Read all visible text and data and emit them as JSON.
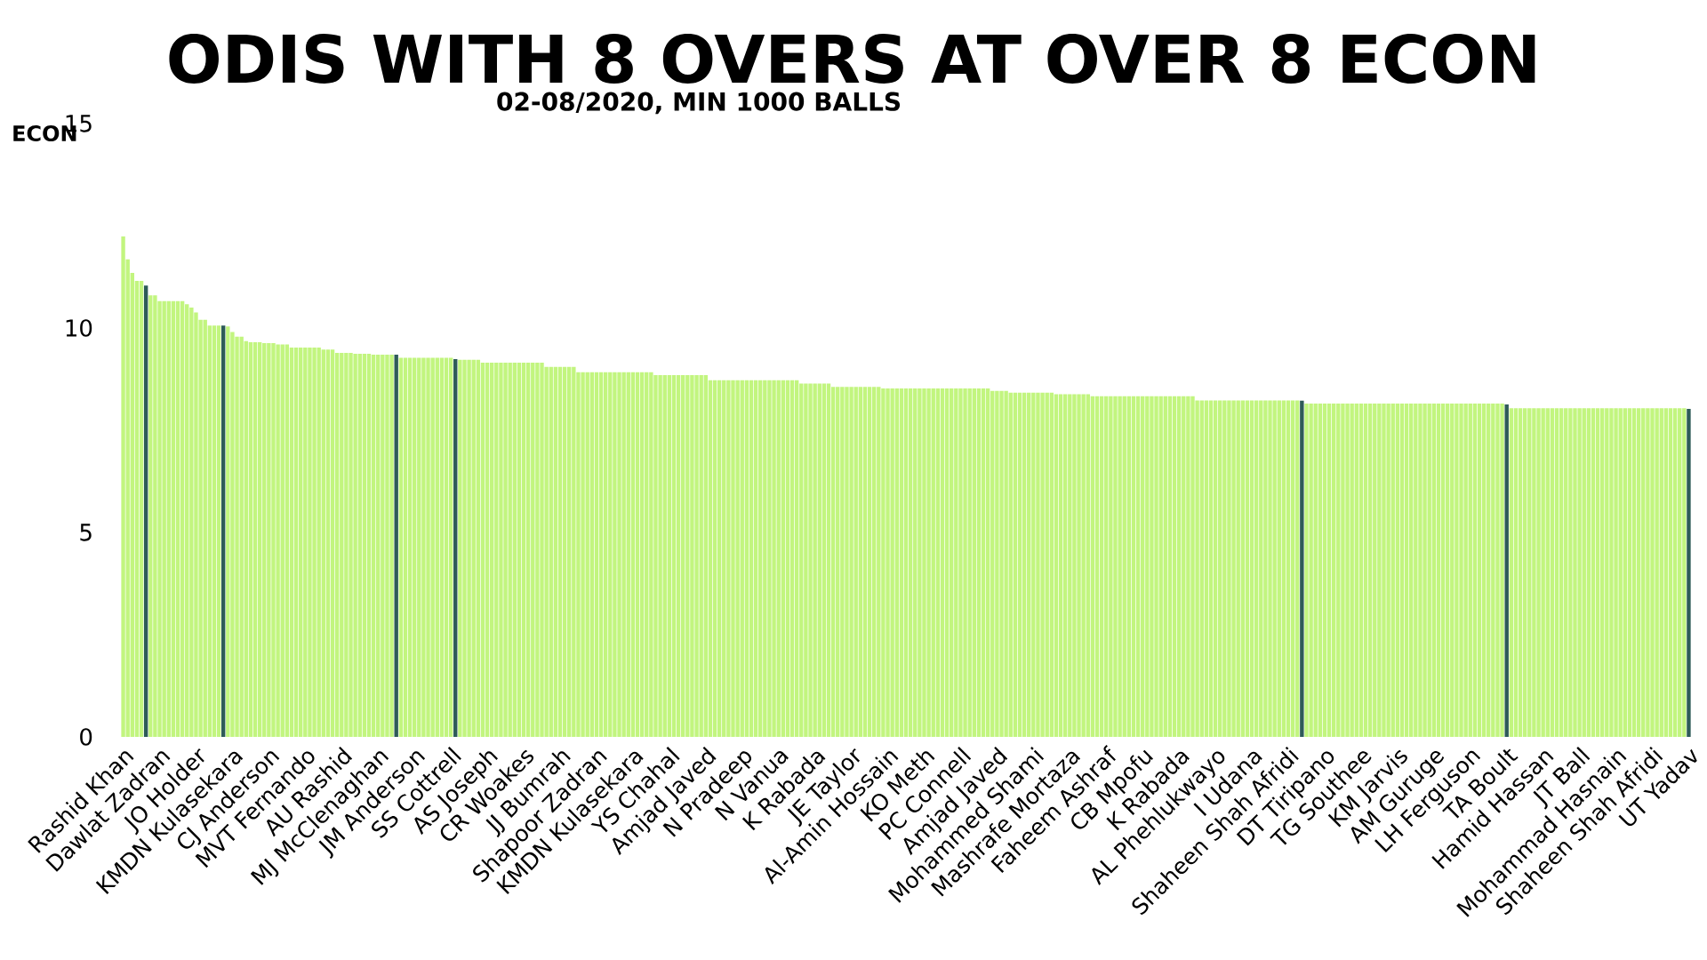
{
  "chart_data": {
    "type": "bar",
    "title": "ODIS WITH 8 OVERS AT OVER 8 ECON",
    "subtitle": "02-08/2020, MIN 1000 BALLS",
    "ylabel": "ECON",
    "ylim": [
      0,
      15
    ],
    "yticks": [
      0,
      5,
      10,
      15
    ],
    "categories": [
      "Rashid Khan",
      null,
      null,
      null,
      null,
      null,
      null,
      null,
      "Dawlat Zadran",
      null,
      null,
      null,
      null,
      null,
      null,
      null,
      "JO Holder",
      null,
      null,
      null,
      null,
      null,
      null,
      null,
      "KMDN Kulasekara",
      null,
      null,
      null,
      null,
      null,
      null,
      null,
      "CJ Anderson",
      null,
      null,
      null,
      null,
      null,
      null,
      null,
      "MVT Fernando",
      null,
      null,
      null,
      null,
      null,
      null,
      null,
      "AU Rashid",
      null,
      null,
      null,
      null,
      null,
      null,
      null,
      "MJ McClenaghan",
      null,
      null,
      null,
      null,
      null,
      null,
      null,
      "JM Anderson",
      null,
      null,
      null,
      null,
      null,
      null,
      null,
      "SS Cottrell",
      null,
      null,
      null,
      null,
      null,
      null,
      null,
      "AS Joseph",
      null,
      null,
      null,
      null,
      null,
      null,
      null,
      "CR Woakes",
      null,
      null,
      null,
      null,
      null,
      null,
      null,
      "JJ Bumrah",
      null,
      null,
      null,
      null,
      null,
      null,
      null,
      "Shapoor Zadran",
      null,
      null,
      null,
      null,
      null,
      null,
      null,
      "KMDN Kulasekara",
      null,
      null,
      null,
      null,
      null,
      null,
      null,
      "YS Chahal",
      null,
      null,
      null,
      null,
      null,
      null,
      null,
      "Amjad Javed",
      null,
      null,
      null,
      null,
      null,
      null,
      null,
      "N Pradeep",
      null,
      null,
      null,
      null,
      null,
      null,
      null,
      "N Vanua",
      null,
      null,
      null,
      null,
      null,
      null,
      null,
      "K Rabada",
      null,
      null,
      null,
      null,
      null,
      null,
      null,
      "JE Taylor",
      null,
      null,
      null,
      null,
      null,
      null,
      null,
      "Al-Amin Hossain",
      null,
      null,
      null,
      null,
      null,
      null,
      null,
      "KO Meth",
      null,
      null,
      null,
      null,
      null,
      null,
      null,
      "PC Connell",
      null,
      null,
      null,
      null,
      null,
      null,
      null,
      "Amjad Javed",
      null,
      null,
      null,
      null,
      null,
      null,
      null,
      "Mohammed Shami",
      null,
      null,
      null,
      null,
      null,
      null,
      null,
      "Mashrafe Mortaza",
      null,
      null,
      null,
      null,
      null,
      null,
      null,
      "Faheem Ashraf",
      null,
      null,
      null,
      null,
      null,
      null,
      null,
      "CB Mpofu",
      null,
      null,
      null,
      null,
      null,
      null,
      null,
      "K Rabada",
      null,
      null,
      null,
      null,
      null,
      null,
      null,
      "AL Phehlukwayo",
      null,
      null,
      null,
      null,
      null,
      null,
      null,
      "I Udana",
      null,
      null,
      null,
      null,
      null,
      null,
      null,
      "Shaheen Shah Afridi",
      null,
      null,
      null,
      null,
      null,
      null,
      null,
      "DT Tiripano",
      null,
      null,
      null,
      null,
      null,
      null,
      null,
      "TG Southee",
      null,
      null,
      null,
      null,
      null,
      null,
      null,
      "KM Jarvis",
      null,
      null,
      null,
      null,
      null,
      null,
      null,
      "AM Guruge",
      null,
      null,
      null,
      null,
      null,
      null,
      null,
      "LH Ferguson",
      null,
      null,
      null,
      null,
      null,
      null,
      null,
      "TA Boult",
      null,
      null,
      null,
      null,
      null,
      null,
      null,
      "Hamid Hassan",
      null,
      null,
      null,
      null,
      null,
      null,
      null,
      "JT Ball",
      null,
      null,
      null,
      null,
      null,
      null,
      null,
      "Mohammad Hasnain",
      null,
      null,
      null,
      null,
      null,
      null,
      null,
      "Shaheen Shah Afridi",
      null,
      null,
      null,
      null,
      null,
      null,
      null,
      "UT Yadav"
    ],
    "values": [
      12.24,
      11.68,
      11.35,
      11.15,
      11.15,
      11.04,
      10.8,
      10.8,
      10.66,
      10.66,
      10.66,
      10.66,
      10.66,
      10.66,
      10.58,
      10.5,
      10.38,
      10.2,
      10.2,
      10.06,
      10.06,
      10.06,
      10.06,
      10.04,
      9.9,
      9.79,
      9.79,
      9.68,
      9.65,
      9.65,
      9.65,
      9.63,
      9.63,
      9.63,
      9.6,
      9.6,
      9.6,
      9.52,
      9.52,
      9.52,
      9.52,
      9.52,
      9.52,
      9.52,
      9.47,
      9.47,
      9.47,
      9.39,
      9.39,
      9.39,
      9.39,
      9.37,
      9.37,
      9.37,
      9.37,
      9.35,
      9.35,
      9.35,
      9.35,
      9.35,
      9.35,
      9.27,
      9.27,
      9.27,
      9.27,
      9.27,
      9.27,
      9.27,
      9.27,
      9.27,
      9.27,
      9.27,
      9.27,
      9.24,
      9.22,
      9.22,
      9.22,
      9.22,
      9.22,
      9.15,
      9.15,
      9.15,
      9.15,
      9.15,
      9.15,
      9.15,
      9.15,
      9.15,
      9.15,
      9.15,
      9.15,
      9.15,
      9.15,
      9.05,
      9.05,
      9.05,
      9.05,
      9.05,
      9.05,
      9.05,
      8.92,
      8.92,
      8.92,
      8.92,
      8.92,
      8.92,
      8.92,
      8.92,
      8.92,
      8.92,
      8.92,
      8.92,
      8.92,
      8.92,
      8.92,
      8.92,
      8.92,
      8.85,
      8.85,
      8.85,
      8.85,
      8.85,
      8.85,
      8.85,
      8.85,
      8.85,
      8.85,
      8.85,
      8.85,
      8.72,
      8.72,
      8.72,
      8.72,
      8.72,
      8.72,
      8.72,
      8.72,
      8.72,
      8.72,
      8.72,
      8.72,
      8.72,
      8.72,
      8.72,
      8.72,
      8.72,
      8.72,
      8.72,
      8.72,
      8.64,
      8.64,
      8.64,
      8.64,
      8.64,
      8.64,
      8.64,
      8.56,
      8.56,
      8.56,
      8.56,
      8.56,
      8.56,
      8.56,
      8.56,
      8.56,
      8.56,
      8.56,
      8.52,
      8.52,
      8.52,
      8.52,
      8.52,
      8.52,
      8.52,
      8.52,
      8.52,
      8.52,
      8.52,
      8.52,
      8.52,
      8.52,
      8.52,
      8.52,
      8.52,
      8.52,
      8.52,
      8.52,
      8.52,
      8.52,
      8.52,
      8.52,
      8.46,
      8.46,
      8.46,
      8.46,
      8.42,
      8.42,
      8.42,
      8.42,
      8.42,
      8.42,
      8.42,
      8.42,
      8.42,
      8.42,
      8.38,
      8.38,
      8.38,
      8.38,
      8.38,
      8.38,
      8.38,
      8.38,
      8.33,
      8.33,
      8.33,
      8.33,
      8.33,
      8.33,
      8.33,
      8.33,
      8.33,
      8.33,
      8.33,
      8.33,
      8.33,
      8.33,
      8.33,
      8.33,
      8.33,
      8.33,
      8.33,
      8.33,
      8.33,
      8.33,
      8.33,
      8.23,
      8.23,
      8.23,
      8.23,
      8.23,
      8.23,
      8.23,
      8.23,
      8.23,
      8.23,
      8.23,
      8.23,
      8.23,
      8.23,
      8.23,
      8.23,
      8.23,
      8.23,
      8.23,
      8.23,
      8.23,
      8.23,
      8.23,
      8.22,
      8.15,
      8.15,
      8.15,
      8.15,
      8.15,
      8.15,
      8.15,
      8.15,
      8.15,
      8.15,
      8.15,
      8.15,
      8.15,
      8.15,
      8.15,
      8.15,
      8.15,
      8.15,
      8.15,
      8.15,
      8.15,
      8.15,
      8.15,
      8.15,
      8.15,
      8.15,
      8.15,
      8.15,
      8.15,
      8.15,
      8.15,
      8.15,
      8.15,
      8.15,
      8.15,
      8.15,
      8.15,
      8.15,
      8.15,
      8.15,
      8.15,
      8.15,
      8.15,
      8.15,
      8.13,
      8.04,
      8.04,
      8.04,
      8.04,
      8.04,
      8.04,
      8.04,
      8.04,
      8.04,
      8.04,
      8.04,
      8.04,
      8.04,
      8.04,
      8.04,
      8.04,
      8.04,
      8.04,
      8.04,
      8.04,
      8.04,
      8.04,
      8.04,
      8.04,
      8.04,
      8.04,
      8.04,
      8.04,
      8.04,
      8.04,
      8.04,
      8.04,
      8.04,
      8.04,
      8.04,
      8.04,
      8.04,
      8.04,
      8.04,
      8.02
    ],
    "colors": [
      "#c2f57f",
      "#c2f57f",
      "#c2f57f",
      "#c2f57f",
      "#c2f57f",
      "#2e5b58",
      "#c2f57f",
      "#c2f57f",
      "#c2f57f",
      "#c2f57f",
      "#c2f57f",
      "#c2f57f",
      "#c2f57f",
      "#c2f57f",
      "#c2f57f",
      "#c2f57f",
      "#c2f57f",
      "#c2f57f",
      "#c2f57f",
      "#c2f57f",
      "#c2f57f",
      "#c2f57f",
      "#2e5b58",
      "#c2f57f",
      "#c2f57f",
      "#c2f57f",
      "#c2f57f",
      "#c2f57f",
      "#c2f57f",
      "#c2f57f",
      "#c2f57f",
      "#c2f57f",
      "#c2f57f",
      "#c2f57f",
      "#c2f57f",
      "#c2f57f",
      "#c2f57f",
      "#c2f57f",
      "#c2f57f",
      "#c2f57f",
      "#c2f57f",
      "#c2f57f",
      "#c2f57f",
      "#c2f57f",
      "#c2f57f",
      "#c2f57f",
      "#c2f57f",
      "#c2f57f",
      "#c2f57f",
      "#c2f57f",
      "#c2f57f",
      "#c2f57f",
      "#c2f57f",
      "#c2f57f",
      "#c2f57f",
      "#c2f57f",
      "#c2f57f",
      "#c2f57f",
      "#c2f57f",
      "#c2f57f",
      "#2e5b58",
      "#c2f57f",
      "#c2f57f",
      "#c2f57f",
      "#c2f57f",
      "#c2f57f",
      "#c2f57f",
      "#c2f57f",
      "#c2f57f",
      "#c2f57f",
      "#c2f57f",
      "#c2f57f",
      "#c2f57f",
      "#2e5b58",
      "#c2f57f",
      "#c2f57f",
      "#c2f57f",
      "#c2f57f",
      "#c2f57f",
      "#c2f57f",
      "#c2f57f",
      "#c2f57f",
      "#c2f57f",
      "#c2f57f",
      "#c2f57f",
      "#c2f57f",
      "#c2f57f",
      "#c2f57f",
      "#c2f57f",
      "#c2f57f",
      "#c2f57f",
      "#c2f57f",
      "#c2f57f",
      "#c2f57f",
      "#c2f57f",
      "#c2f57f",
      "#c2f57f",
      "#c2f57f",
      "#c2f57f",
      "#c2f57f",
      "#c2f57f",
      "#c2f57f",
      "#c2f57f",
      "#c2f57f",
      "#c2f57f",
      "#c2f57f",
      "#c2f57f",
      "#c2f57f",
      "#c2f57f",
      "#c2f57f",
      "#c2f57f",
      "#c2f57f",
      "#c2f57f",
      "#c2f57f",
      "#c2f57f",
      "#c2f57f",
      "#c2f57f",
      "#c2f57f",
      "#c2f57f",
      "#c2f57f",
      "#c2f57f",
      "#c2f57f",
      "#c2f57f",
      "#c2f57f",
      "#c2f57f",
      "#c2f57f",
      "#c2f57f",
      "#c2f57f",
      "#c2f57f",
      "#c2f57f",
      "#c2f57f",
      "#c2f57f",
      "#c2f57f",
      "#c2f57f",
      "#c2f57f",
      "#c2f57f",
      "#c2f57f",
      "#c2f57f",
      "#c2f57f",
      "#c2f57f",
      "#c2f57f",
      "#c2f57f",
      "#c2f57f",
      "#c2f57f",
      "#c2f57f",
      "#c2f57f",
      "#c2f57f",
      "#c2f57f",
      "#c2f57f",
      "#c2f57f",
      "#c2f57f",
      "#c2f57f",
      "#c2f57f",
      "#c2f57f",
      "#c2f57f",
      "#c2f57f",
      "#c2f57f",
      "#c2f57f",
      "#c2f57f",
      "#c2f57f",
      "#c2f57f",
      "#c2f57f",
      "#c2f57f",
      "#c2f57f",
      "#c2f57f",
      "#c2f57f",
      "#c2f57f",
      "#c2f57f",
      "#c2f57f",
      "#c2f57f",
      "#c2f57f",
      "#c2f57f",
      "#c2f57f",
      "#c2f57f",
      "#c2f57f",
      "#c2f57f",
      "#c2f57f",
      "#c2f57f",
      "#c2f57f",
      "#c2f57f",
      "#c2f57f",
      "#c2f57f",
      "#c2f57f",
      "#c2f57f",
      "#c2f57f",
      "#c2f57f",
      "#c2f57f",
      "#c2f57f",
      "#c2f57f",
      "#c2f57f",
      "#c2f57f",
      "#c2f57f",
      "#c2f57f",
      "#c2f57f",
      "#c2f57f",
      "#c2f57f",
      "#c2f57f",
      "#c2f57f",
      "#c2f57f",
      "#c2f57f",
      "#c2f57f",
      "#c2f57f",
      "#c2f57f",
      "#c2f57f",
      "#c2f57f",
      "#c2f57f",
      "#c2f57f",
      "#c2f57f",
      "#c2f57f",
      "#c2f57f",
      "#c2f57f",
      "#c2f57f",
      "#c2f57f",
      "#c2f57f",
      "#c2f57f",
      "#c2f57f",
      "#c2f57f",
      "#c2f57f",
      "#c2f57f",
      "#c2f57f",
      "#c2f57f",
      "#c2f57f",
      "#c2f57f",
      "#c2f57f",
      "#c2f57f",
      "#c2f57f",
      "#c2f57f",
      "#c2f57f",
      "#c2f57f",
      "#c2f57f",
      "#c2f57f",
      "#c2f57f",
      "#c2f57f",
      "#c2f57f",
      "#c2f57f",
      "#c2f57f",
      "#c2f57f",
      "#c2f57f",
      "#c2f57f",
      "#c2f57f",
      "#c2f57f",
      "#c2f57f",
      "#c2f57f",
      "#c2f57f",
      "#c2f57f",
      "#c2f57f",
      "#c2f57f",
      "#c2f57f",
      "#c2f57f",
      "#c2f57f",
      "#c2f57f",
      "#c2f57f",
      "#c2f57f",
      "#c2f57f",
      "#c2f57f",
      "#c2f57f",
      "#c2f57f",
      "#c2f57f",
      "#c2f57f",
      "#2e5b58",
      "#c2f57f",
      "#c2f57f",
      "#c2f57f",
      "#c2f57f",
      "#c2f57f",
      "#c2f57f",
      "#c2f57f",
      "#c2f57f",
      "#c2f57f",
      "#c2f57f",
      "#c2f57f",
      "#c2f57f",
      "#c2f57f",
      "#c2f57f",
      "#c2f57f",
      "#c2f57f",
      "#c2f57f",
      "#c2f57f",
      "#c2f57f",
      "#c2f57f",
      "#c2f57f",
      "#c2f57f",
      "#c2f57f",
      "#c2f57f",
      "#c2f57f",
      "#c2f57f",
      "#c2f57f",
      "#c2f57f",
      "#c2f57f",
      "#c2f57f",
      "#c2f57f",
      "#c2f57f",
      "#c2f57f",
      "#c2f57f",
      "#c2f57f",
      "#c2f57f",
      "#c2f57f",
      "#c2f57f",
      "#c2f57f",
      "#c2f57f",
      "#c2f57f",
      "#c2f57f",
      "#c2f57f",
      "#c2f57f",
      "#2e5b58",
      "#c2f57f",
      "#c2f57f",
      "#c2f57f",
      "#c2f57f",
      "#c2f57f",
      "#c2f57f",
      "#c2f57f",
      "#c2f57f",
      "#c2f57f",
      "#c2f57f",
      "#c2f57f",
      "#c2f57f",
      "#c2f57f",
      "#c2f57f",
      "#c2f57f",
      "#c2f57f",
      "#c2f57f",
      "#c2f57f",
      "#c2f57f",
      "#c2f57f",
      "#c2f57f",
      "#c2f57f",
      "#c2f57f",
      "#c2f57f",
      "#c2f57f",
      "#c2f57f",
      "#c2f57f",
      "#c2f57f",
      "#c2f57f",
      "#c2f57f",
      "#c2f57f",
      "#c2f57f",
      "#c2f57f",
      "#c2f57f",
      "#c2f57f",
      "#c2f57f",
      "#c2f57f",
      "#c2f57f",
      "#c2f57f",
      "#2e5b58"
    ]
  }
}
